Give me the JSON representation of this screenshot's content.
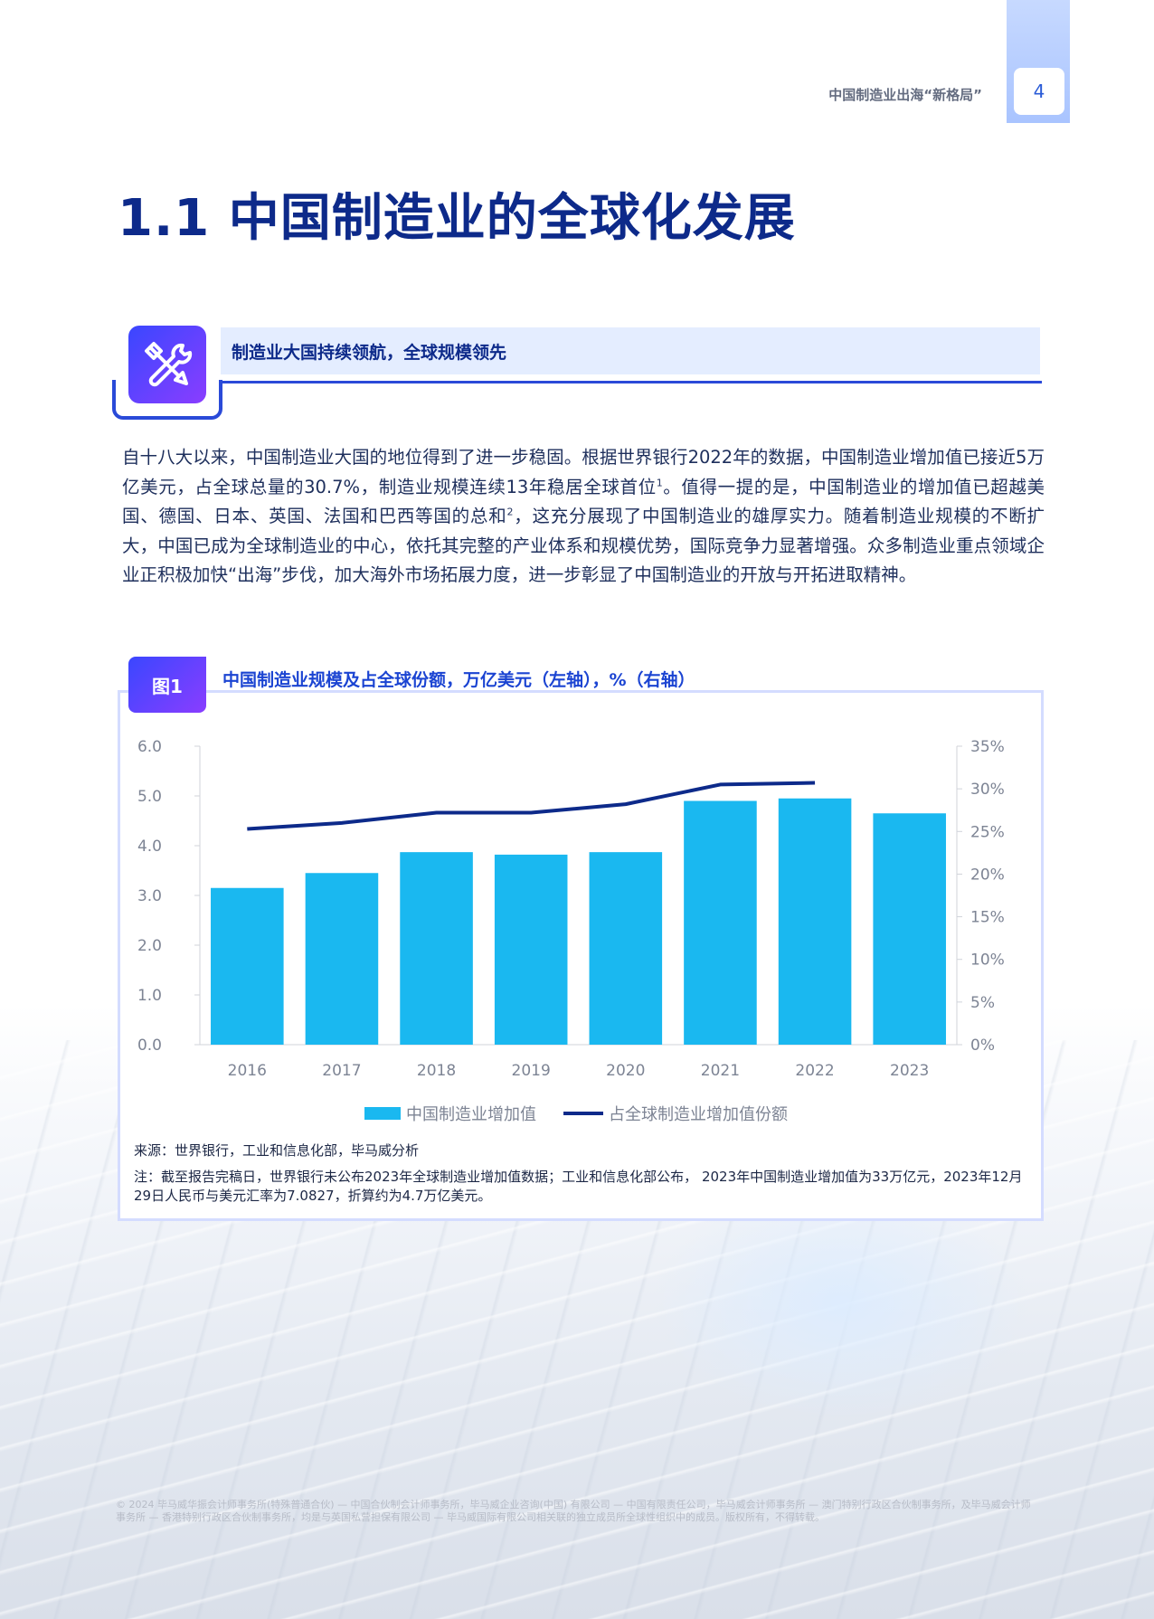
{
  "header": {
    "running_title": "中国制造业出海“新格局”",
    "page_number": "4"
  },
  "main_title": "1.1 中国制造业的全球化发展",
  "section": {
    "icon": "tools-icon",
    "heading": "制造业大国持续领航，全球规模领先"
  },
  "body": {
    "p1_a": "自十八大以来，中国制造业大国的地位得到了进一步稳固。根据世界银行2022年的数据，中国制造业增加值已接近5万亿美元，占全球总量的30.7%，制造业规模连续13年稳居全球首位",
    "fn1": "1",
    "p1_b": "。值得一提的是，中国制造业的增加值已超越美国、德国、日本、英国、法国和巴西等国的总和",
    "fn2": "2",
    "p1_c": "，这充分展现了中国制造业的雄厚实力。随着制造业规模的不断扩大，中国已成为全球制造业的中心，依托其完整的产业体系和规模优势，国际竞争力显著增强。众多制造业重点领域企业正积极加快“出海”步伐，加大海外市场拓展力度，进一步彰显了中国制造业的开放与开拓进取精神。"
  },
  "figure": {
    "badge": "图1",
    "title": "中国制造业规模及占全球份额，万亿美元（左轴），%（右轴）",
    "source": "来源：世界银行，工业和信息化部，毕马威分析",
    "note": "注：截至报告完稿日，世界银行未公布2023年全球制造业增加值数据；工业和信息化部公布， 2023年中国制造业增加值为33万亿元，2023年12月29日人民币与美元汇率为7.0827，折算约为4.7万亿美元。"
  },
  "chart_data": {
    "type": "bar",
    "categories": [
      "2016",
      "2017",
      "2018",
      "2019",
      "2020",
      "2021",
      "2022",
      "2023"
    ],
    "series": [
      {
        "name": "中国制造业增加值",
        "type": "bar",
        "axis": "left",
        "color": "#1ab8f0",
        "values": [
          3.15,
          3.45,
          3.87,
          3.82,
          3.87,
          4.9,
          4.95,
          4.65
        ]
      },
      {
        "name": "占全球制造业增加值份额",
        "type": "line",
        "axis": "right",
        "color": "#0d2a8a",
        "values": [
          25.3,
          26.0,
          27.2,
          27.2,
          28.2,
          30.5,
          30.7,
          null
        ]
      }
    ],
    "y_left": {
      "min": 0,
      "max": 6,
      "ticks": [
        "0.0",
        "1.0",
        "2.0",
        "3.0",
        "4.0",
        "5.0",
        "6.0"
      ]
    },
    "y_right": {
      "min": 0,
      "max": 35,
      "ticks": [
        "0%",
        "5%",
        "10%",
        "15%",
        "20%",
        "25%",
        "30%",
        "35%"
      ]
    },
    "grid": false,
    "legend_position": "bottom"
  },
  "footer": {
    "copyright": "© 2024 毕马威华振会计师事务所(特殊普通合伙) — 中国合伙制会计师事务所，毕马威企业咨询(中国) 有限公司 — 中国有限责任公司，毕马威会计师事务所 — 澳门特别行政区合伙制事务所，及毕马威会计师事务所 — 香港特别行政区合伙制事务所，均是与英国私营担保有限公司 — 毕马威国际有限公司相关联的独立成员所全球性组织中的成员。版权所有，不得转载。"
  }
}
